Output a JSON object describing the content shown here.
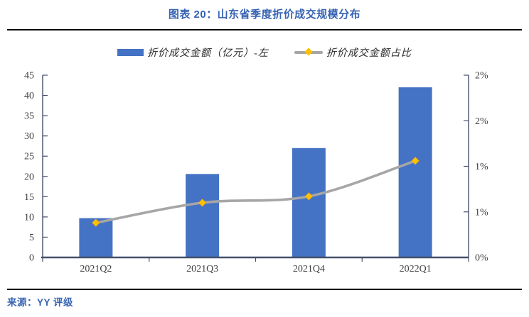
{
  "header": {
    "title": "图表 20：山东省季度折价成交规模分布"
  },
  "legend": [
    {
      "label": "折价成交金额（亿元）-左",
      "swatch": "bar-blue"
    },
    {
      "label": "折价成交金额占比",
      "swatch": "line-gray-diamond"
    }
  ],
  "footer": {
    "source": "来源：YY 评级"
  },
  "colors": {
    "title_blue": "#3663B2",
    "bar": "#4472C4",
    "line": "#A6A6A6",
    "marker": "#FFC000",
    "axis": "#44506B",
    "tick_text": "#404040",
    "rule": "#0A0A0A"
  },
  "chart_data": {
    "type": "bar",
    "subtype": "combo bar + smoothed line, dual axis",
    "title": "山东省季度折价成交规模分布",
    "categories": [
      "2021Q2",
      "2021Q3",
      "2021Q4",
      "2022Q1"
    ],
    "series": [
      {
        "name": "折价成交金额（亿元）-左",
        "type": "bar",
        "axis": "left",
        "values": [
          9.7,
          20.6,
          27.0,
          42.0
        ]
      },
      {
        "name": "折价成交金额占比",
        "type": "line",
        "axis": "right",
        "values_pct": [
          0.38,
          0.6,
          0.67,
          1.06
        ]
      }
    ],
    "left_axis": {
      "min": 0,
      "max": 45,
      "step": 5,
      "tick_labels": [
        "0",
        "5",
        "10",
        "15",
        "20",
        "25",
        "30",
        "35",
        "40",
        "45"
      ]
    },
    "right_axis": {
      "min": 0,
      "max": 2,
      "step": 0.5,
      "tick_labels": [
        "0%",
        "1%",
        "1%",
        "2%",
        "2%"
      ]
    },
    "xlabel": "",
    "ylabel": "",
    "grid": false,
    "legend_position": "top"
  }
}
